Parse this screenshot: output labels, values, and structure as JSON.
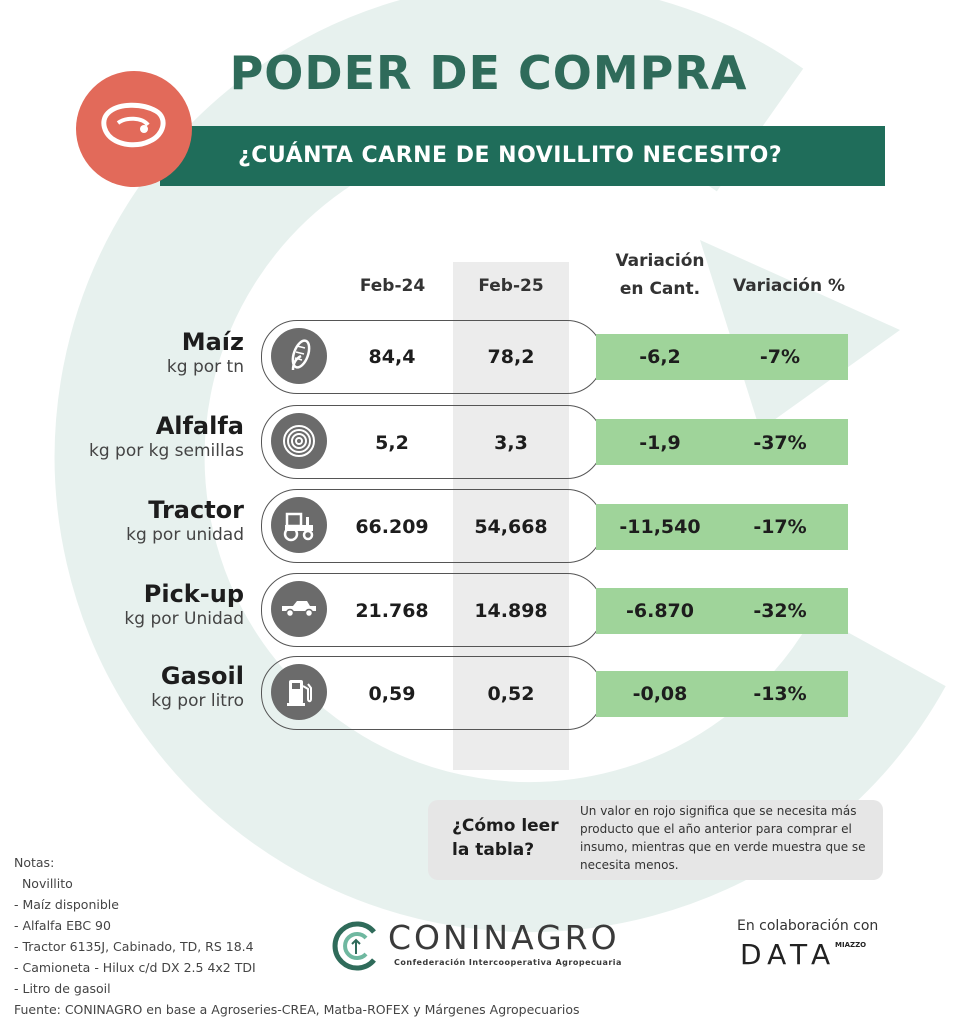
{
  "title": "PODER DE COMPRA",
  "subtitle": "¿CUÁNTA CARNE DE NOVILLITO NECESITO?",
  "colors": {
    "brand": "#1f6d5a",
    "badge": "#e26a5a",
    "positive": "#9fd49a"
  },
  "header": {
    "col1": "Feb-24",
    "col2": "Feb-25",
    "col3_line1": "Variación",
    "col3_line2": "en Cant.",
    "col4": "Variación %"
  },
  "rows": [
    {
      "name": "Maíz",
      "unit": "kg por tn",
      "icon": "corn-icon",
      "feb24": "84,4",
      "feb25": "78,2",
      "var_cant": "-6,2",
      "var_pct": "-7%"
    },
    {
      "name": "Alfalfa",
      "unit": "kg por kg semillas",
      "icon": "seed-bale-icon",
      "feb24": "5,2",
      "feb25": "3,3",
      "var_cant": "-1,9",
      "var_pct": "-37%"
    },
    {
      "name": "Tractor",
      "unit": "kg por unidad",
      "icon": "tractor-icon",
      "feb24": "66.209",
      "feb25": "54,668",
      "var_cant": "-11,540",
      "var_pct": "-17%"
    },
    {
      "name": "Pick-up",
      "unit": "kg por Unidad",
      "icon": "pickup-icon",
      "feb24": "21.768",
      "feb25": "14.898",
      "var_cant": "-6.870",
      "var_pct": "-32%"
    },
    {
      "name": "Gasoil",
      "unit": "kg por litro",
      "icon": "fuel-pump-icon",
      "feb24": "0,59",
      "feb25": "0,52",
      "var_cant": "-0,08",
      "var_pct": "-13%"
    }
  ],
  "howto": {
    "question": "¿Cómo leer la tabla?",
    "answer": "Un valor en rojo significa que se necesita más producto que el año anterior para comprar el insumo, mientras que en verde muestra que se necesita menos."
  },
  "notes": [
    "Notas:",
    "  Novillito",
    "- Maíz disponible",
    "- Alfalfa EBC 90",
    "- Tractor 6135J, Cabinado, TD, RS 18.4",
    "- Camioneta - Hilux c/d DX 2.5 4x2 TDI",
    "- Litro de gasoil",
    "Fuente: CONINAGRO en base a Agroseries-CREA, Matba-ROFEX y Márgenes Agropecuarios"
  ],
  "logo": {
    "name": "CONINAGRO",
    "tagline": "Confederación Intercooperativa Agropecuaria"
  },
  "collab": {
    "label": "En colaboración con",
    "brand": "DATA",
    "brand_sup": "MIAZZO"
  }
}
